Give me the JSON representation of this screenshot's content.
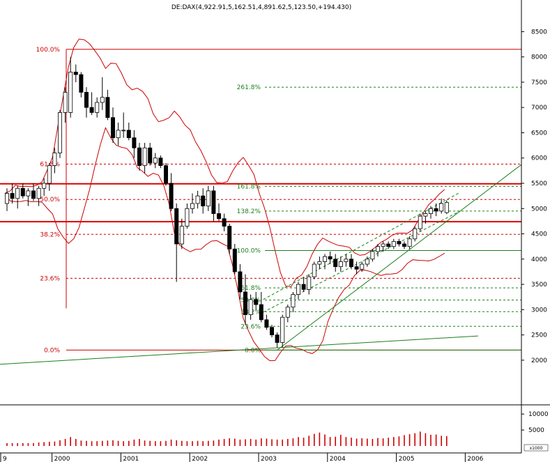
{
  "chart_data": {
    "type": "candlestick",
    "title": "DE:DAX(4,922.91,5,162.51,4,891.62,5,123.50,+194.430)",
    "y_axis": {
      "ticks": [
        2000,
        2500,
        3000,
        3500,
        4000,
        4500,
        5000,
        5500,
        6000,
        6500,
        7000,
        7500,
        8000,
        8500
      ],
      "ylim": [
        1130,
        8850
      ]
    },
    "x_axis": {
      "ticks": [
        "9",
        "2000",
        "2001",
        "2002",
        "2003",
        "2004",
        "2005",
        "2006"
      ]
    },
    "volume_axis": {
      "ticks": [
        5000,
        10000
      ],
      "multiplier_label": "x1000",
      "ylim": [
        0,
        12000
      ]
    },
    "fib_left": {
      "color": "#cc0000",
      "levels": [
        {
          "label": "100.0%",
          "value": 8150
        },
        {
          "label": "61.8%",
          "value": 5880
        },
        {
          "label": "50.0%",
          "value": 5180
        },
        {
          "label": "38.2%",
          "value": 4490
        },
        {
          "label": "23.6%",
          "value": 3620
        },
        {
          "label": "0.0%",
          "value": 2200
        }
      ]
    },
    "fib_right": {
      "color": "#1a7f1a",
      "levels": [
        {
          "label": "261.8%",
          "value": 7400
        },
        {
          "label": "161.8%",
          "value": 5440
        },
        {
          "label": "138.2%",
          "value": 4950
        },
        {
          "label": "100.0%",
          "value": 4170
        },
        {
          "label": "61.8%",
          "value": 3430
        },
        {
          "label": "50.0%",
          "value": 3190
        },
        {
          "label": "38.2%",
          "value": 2960
        },
        {
          "label": "23.6%",
          "value": 2670
        },
        {
          "label": "0.0%",
          "value": 2200
        }
      ]
    },
    "horizontal_lines": [
      5490,
      4740
    ],
    "candles": [
      [
        5100,
        5400,
        4950,
        5300
      ],
      [
        5300,
        5500,
        5100,
        5200
      ],
      [
        5200,
        5450,
        5000,
        5400
      ],
      [
        5400,
        5500,
        5200,
        5250
      ],
      [
        5250,
        5400,
        5050,
        5350
      ],
      [
        5350,
        5500,
        5150,
        5200
      ],
      [
        5200,
        5450,
        5050,
        5400
      ],
      [
        5400,
        5600,
        5250,
        5500
      ],
      [
        5500,
        5900,
        5350,
        5850
      ],
      [
        5850,
        6200,
        5700,
        6100
      ],
      [
        6100,
        6950,
        6000,
        6900
      ],
      [
        6900,
        7400,
        6700,
        7300
      ],
      [
        6900,
        8000,
        6800,
        7700
      ],
      [
        7700,
        7850,
        7500,
        7650
      ],
      [
        7650,
        7700,
        7200,
        7300
      ],
      [
        7300,
        7400,
        6800,
        7000
      ],
      [
        7000,
        7300,
        6850,
        6900
      ],
      [
        6900,
        7200,
        6800,
        7100
      ],
      [
        7100,
        7600,
        6950,
        7200
      ],
      [
        7200,
        7350,
        6750,
        6800
      ],
      [
        6800,
        7000,
        6300,
        6400
      ],
      [
        6400,
        6700,
        6250,
        6550
      ],
      [
        6550,
        6900,
        6400,
        6550
      ],
      [
        6550,
        6700,
        6350,
        6400
      ],
      [
        6400,
        6550,
        6000,
        6200
      ],
      [
        6200,
        6300,
        5750,
        5850
      ],
      [
        5850,
        6300,
        5700,
        6200
      ],
      [
        6200,
        6300,
        5850,
        5900
      ],
      [
        5900,
        6100,
        5800,
        6000
      ],
      [
        6000,
        6050,
        5800,
        5850
      ],
      [
        5850,
        5900,
        5450,
        5500
      ],
      [
        5500,
        5700,
        4950,
        5000
      ],
      [
        5000,
        5100,
        3550,
        4300
      ],
      [
        4300,
        4800,
        4200,
        4650
      ],
      [
        4650,
        5100,
        4600,
        5000
      ],
      [
        5000,
        5300,
        4900,
        5100
      ],
      [
        5100,
        5350,
        5000,
        5250
      ],
      [
        5250,
        5400,
        4900,
        5050
      ],
      [
        5050,
        5450,
        4950,
        5350
      ],
      [
        5350,
        5450,
        4750,
        4900
      ],
      [
        4900,
        5100,
        4750,
        4800
      ],
      [
        4800,
        4900,
        4550,
        4650
      ],
      [
        4650,
        4700,
        4100,
        4200
      ],
      [
        4200,
        4300,
        3700,
        3750
      ],
      [
        3750,
        3900,
        3200,
        3350
      ],
      [
        3350,
        3700,
        2700,
        2900
      ],
      [
        2900,
        3300,
        2800,
        3200
      ],
      [
        3200,
        3350,
        3000,
        3100
      ],
      [
        3100,
        3350,
        2750,
        2800
      ],
      [
        2800,
        2900,
        2600,
        2650
      ],
      [
        2650,
        2700,
        2450,
        2500
      ],
      [
        2500,
        2550,
        2250,
        2350
      ],
      [
        2350,
        2900,
        2250,
        2850
      ],
      [
        2850,
        3100,
        2750,
        3050
      ],
      [
        3050,
        3350,
        2950,
        3300
      ],
      [
        3300,
        3550,
        3200,
        3500
      ],
      [
        3500,
        3650,
        3350,
        3400
      ],
      [
        3400,
        3700,
        3300,
        3650
      ],
      [
        3650,
        3950,
        3600,
        3900
      ],
      [
        3900,
        4050,
        3800,
        3950
      ],
      [
        3950,
        4100,
        3800,
        4050
      ],
      [
        4050,
        4150,
        3900,
        4000
      ],
      [
        4000,
        4100,
        3750,
        3850
      ],
      [
        3850,
        4050,
        3750,
        3950
      ],
      [
        3950,
        4100,
        3850,
        4000
      ],
      [
        4000,
        4100,
        3800,
        3850
      ],
      [
        3850,
        3950,
        3700,
        3800
      ],
      [
        3800,
        3950,
        3750,
        3900
      ],
      [
        3900,
        4050,
        3850,
        4000
      ],
      [
        4000,
        4200,
        3950,
        4150
      ],
      [
        4150,
        4300,
        4050,
        4250
      ],
      [
        4250,
        4350,
        4150,
        4300
      ],
      [
        4300,
        4350,
        4200,
        4250
      ],
      [
        4250,
        4400,
        4200,
        4350
      ],
      [
        4350,
        4400,
        4250,
        4300
      ],
      [
        4300,
        4350,
        4200,
        4250
      ],
      [
        4250,
        4450,
        4200,
        4400
      ],
      [
        4400,
        4650,
        4350,
        4600
      ],
      [
        4600,
        4900,
        4550,
        4850
      ],
      [
        4850,
        4950,
        4700,
        4900
      ],
      [
        4900,
        5050,
        4800,
        5000
      ],
      [
        5000,
        5100,
        4850,
        4950
      ],
      [
        4950,
        5200,
        4900,
        5100
      ],
      [
        4920,
        5160,
        4890,
        5120
      ]
    ],
    "volumes": [
      0.9,
      0.9,
      0.9,
      0.9,
      0.9,
      0.9,
      1.1,
      1.2,
      1.3,
      1.4,
      1.8,
      2.2,
      2.8,
      2.2,
      1.7,
      1.6,
      1.5,
      1.5,
      1.6,
      1.7,
      1.8,
      1.6,
      1.5,
      1.6,
      2.0,
      2.2,
      1.7,
      1.6,
      1.5,
      1.5,
      1.6,
      2.0,
      1.8,
      1.6,
      1.5,
      1.5,
      1.6,
      1.5,
      1.6,
      1.7,
      2.0,
      2.2,
      2.4,
      2.3,
      2.0,
      2.1,
      2.2,
      2.0,
      2.4,
      2.3,
      2.1,
      2.0,
      2.0,
      2.2,
      2.4,
      2.8,
      2.6,
      3.2,
      3.8,
      4.2,
      3.6,
      2.8,
      2.9,
      3.5,
      2.8,
      2.6,
      2.3,
      2.4,
      2.3,
      2.2,
      2.5,
      2.4,
      2.6,
      2.8,
      3.0,
      3.4,
      3.7,
      4.0,
      4.5,
      4.0,
      3.5,
      3.6,
      3.2,
      3.1
    ]
  }
}
